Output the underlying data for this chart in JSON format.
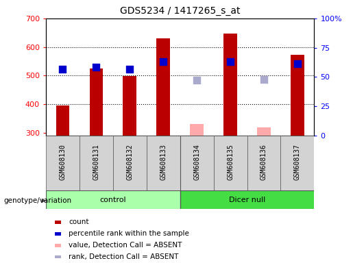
{
  "title": "GDS5234 / 1417265_s_at",
  "samples": [
    "GSM608130",
    "GSM608131",
    "GSM608132",
    "GSM608133",
    "GSM608134",
    "GSM608135",
    "GSM608136",
    "GSM608137"
  ],
  "count_values": [
    395,
    525,
    497,
    630,
    null,
    648,
    null,
    572
  ],
  "count_absent": [
    null,
    null,
    null,
    null,
    330,
    null,
    318,
    null
  ],
  "rank_values": [
    522,
    530,
    521,
    548,
    null,
    548,
    null,
    542
  ],
  "rank_absent": [
    null,
    null,
    null,
    null,
    483,
    null,
    485,
    null
  ],
  "ylim_left": [
    290,
    700
  ],
  "ylim_right": [
    0,
    100
  ],
  "yticks_left": [
    300,
    400,
    500,
    600,
    700
  ],
  "yticks_right": [
    0,
    25,
    50,
    75,
    100
  ],
  "ytick_right_labels": [
    "0",
    "25",
    "50",
    "75",
    "100%"
  ],
  "grid_lines": [
    400,
    500,
    600
  ],
  "bar_color": "#bb0000",
  "bar_absent_color": "#ffaaaa",
  "rank_color": "#0000cc",
  "rank_absent_color": "#aaaacc",
  "control_color": "#aaffaa",
  "dicer_color": "#44dd44",
  "bar_width": 0.4,
  "rank_marker_size": 55,
  "legend_items": [
    {
      "label": "count",
      "color": "#bb0000"
    },
    {
      "label": "percentile rank within the sample",
      "color": "#0000cc"
    },
    {
      "label": "value, Detection Call = ABSENT",
      "color": "#ffaaaa"
    },
    {
      "label": "rank, Detection Call = ABSENT",
      "color": "#aaaacc"
    }
  ],
  "n_control": 4,
  "n_dicer": 4,
  "group_label": "genotype/variation",
  "control_label": "control",
  "dicer_label": "Dicer null"
}
